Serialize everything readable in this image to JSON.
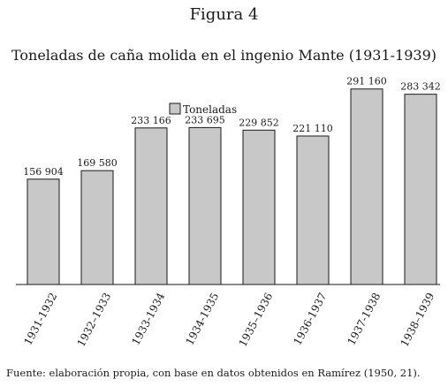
{
  "figure_label": "Figura 4",
  "source_note": "Fuente: elaboración propia, con base en datos obtenidos en Ramírez (1950, 21).",
  "colors": {
    "bar_fill": "#c8c8c8",
    "bar_stroke": "#1a1a1a"
  },
  "chart_data": {
    "type": "bar",
    "title": "Toneladas de caña molida en el ingenio Mante (1931-1939)",
    "xlabel": "",
    "ylabel": "",
    "ylim": [
      0,
      300000
    ],
    "grid": false,
    "legend_position": "top-center",
    "categories": [
      "1931-1932",
      "1932–1933",
      "1933-1934",
      "1934-1935",
      "1935–1936",
      "1936-1937",
      "1937-1938",
      "1938–1939"
    ],
    "series": [
      {
        "name": "Toneladas",
        "values": [
          156904,
          169580,
          233166,
          233695,
          229852,
          221110,
          291160,
          283342
        ],
        "labels": [
          "156 904",
          "169 580",
          "233 166",
          "233 695",
          "229 852",
          "221 110",
          "291 160",
          "283 342"
        ]
      }
    ]
  }
}
